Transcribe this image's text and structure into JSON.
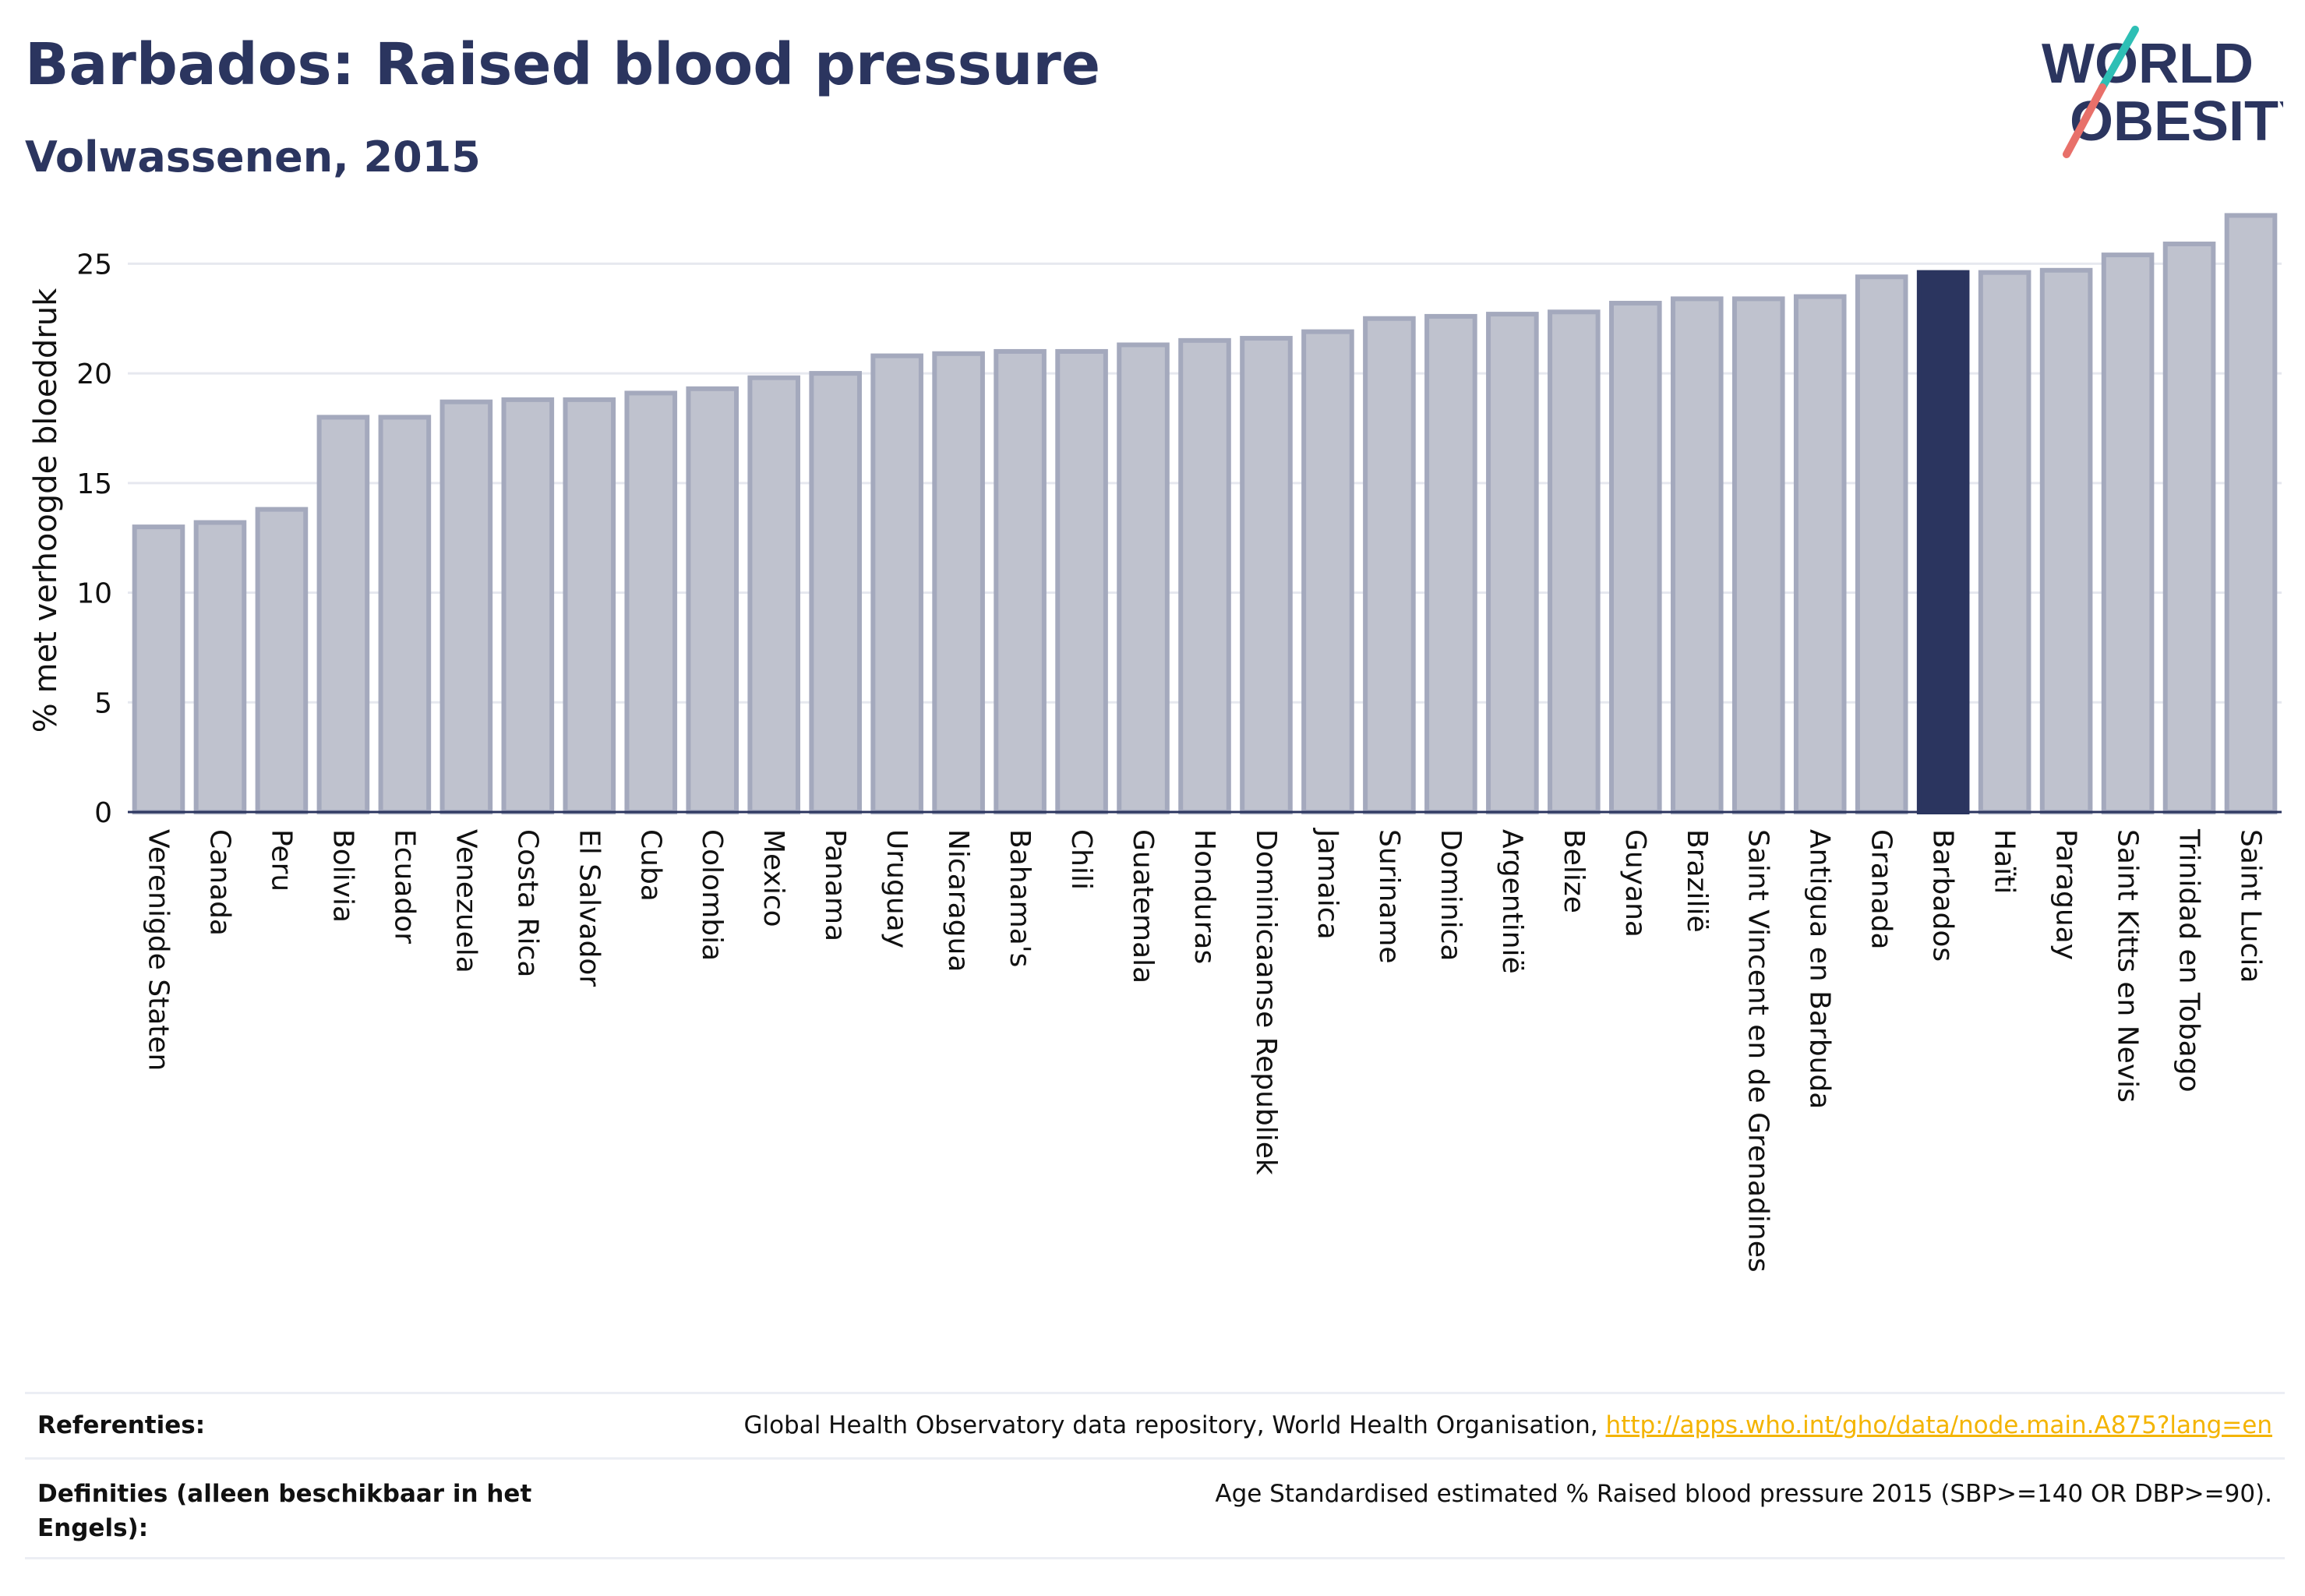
{
  "header": {
    "title": "Barbados: Raised blood pressure",
    "subtitle": "Volwassenen, 2015"
  },
  "logo": {
    "line1": "WORLD",
    "line2": "OBESITY"
  },
  "chart_data": {
    "type": "bar",
    "ylabel": "% met verhoogde bloeddruk",
    "xlabel": "",
    "ylim": [
      0,
      27.5
    ],
    "yticks": [
      0,
      5,
      10,
      15,
      20,
      25
    ],
    "grid": true,
    "highlight": "Barbados",
    "colors": {
      "bar": "#bfc2ce",
      "bar_edge": "#a4a9bd",
      "highlight": "#2b355f",
      "grid": "#e6e8ef",
      "axis": "#2b355f"
    },
    "categories": [
      "Verenigde Staten",
      "Canada",
      "Peru",
      "Bolivia",
      "Ecuador",
      "Venezuela",
      "Costa Rica",
      "El Salvador",
      "Cuba",
      "Colombia",
      "Mexico",
      "Panama",
      "Uruguay",
      "Nicaragua",
      "Bahama's",
      "Chili",
      "Guatemala",
      "Honduras",
      "Dominicaanse Republiek",
      "Jamaica",
      "Suriname",
      "Dominica",
      "Argentinië",
      "Belize",
      "Guyana",
      "Brazilië",
      "Saint Vincent en de Grenadines",
      "Antigua en Barbuda",
      "Granada",
      "Barbados",
      "Haïti",
      "Paraguay",
      "Saint Kitts en Nevis",
      "Trinidad en Tobago",
      "Saint Lucia"
    ],
    "values": [
      13.0,
      13.2,
      13.8,
      18.0,
      18.0,
      18.7,
      18.8,
      18.8,
      19.1,
      19.3,
      19.8,
      20.0,
      20.8,
      20.9,
      21.0,
      21.0,
      21.3,
      21.5,
      21.6,
      21.9,
      22.5,
      22.6,
      22.7,
      22.8,
      23.2,
      23.4,
      23.4,
      23.5,
      24.4,
      24.6,
      24.6,
      24.7,
      25.4,
      25.9,
      27.2
    ]
  },
  "footer": {
    "references_label": "Referenties:",
    "references_text": "Global Health Observatory data repository, World Health Organisation, ",
    "references_link": "http://apps.who.int/gho/data/node.main.A875?lang=en",
    "definitions_label": "Definities (alleen beschikbaar in het Engels):",
    "definitions_text": "Age Standardised estimated % Raised blood pressure 2015 (SBP>=140 OR DBP>=90)."
  }
}
